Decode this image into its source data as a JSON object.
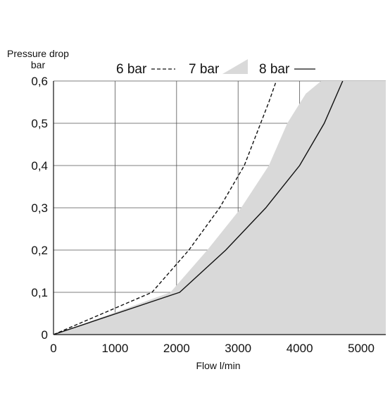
{
  "chart_data": {
    "type": "line",
    "title": "",
    "xlabel": "Flow l/min",
    "ylabel_line1": "Pressure drop",
    "ylabel_line2": "bar",
    "xlim": [
      0,
      5400
    ],
    "ylim": [
      0,
      0.6
    ],
    "x_ticks": [
      0,
      1000,
      2000,
      3000,
      4000,
      5000
    ],
    "x_tick_labels": [
      "0",
      "1000",
      "2000",
      "3000",
      "4000",
      "5000"
    ],
    "y_ticks": [
      0,
      0.1,
      0.2,
      0.3,
      0.4,
      0.5,
      0.6
    ],
    "y_tick_labels": [
      "0",
      "0,1",
      "0,2",
      "0,3",
      "0,4",
      "0,5",
      "0,6"
    ],
    "grid": true,
    "legend_position": "top",
    "series": [
      {
        "name": "6 bar",
        "style": "dashed",
        "color": "#111111",
        "points": [
          [
            0,
            0
          ],
          [
            1600,
            0.1
          ],
          [
            2200,
            0.2
          ],
          [
            2700,
            0.3
          ],
          [
            3100,
            0.4
          ],
          [
            3500,
            0.55
          ],
          [
            3620,
            0.6
          ]
        ]
      },
      {
        "name": "7 bar",
        "style": "filled-area",
        "color": "#d9d9d9",
        "points": [
          [
            0,
            0
          ],
          [
            1900,
            0.1
          ],
          [
            2500,
            0.2
          ],
          [
            3050,
            0.3
          ],
          [
            3500,
            0.4
          ],
          [
            3800,
            0.5
          ],
          [
            4100,
            0.57
          ],
          [
            4350,
            0.6
          ]
        ]
      },
      {
        "name": "8 bar",
        "style": "solid",
        "color": "#111111",
        "points": [
          [
            0,
            0
          ],
          [
            2050,
            0.1
          ],
          [
            2800,
            0.2
          ],
          [
            3450,
            0.3
          ],
          [
            4000,
            0.4
          ],
          [
            4400,
            0.5
          ],
          [
            4700,
            0.6
          ]
        ]
      }
    ]
  }
}
